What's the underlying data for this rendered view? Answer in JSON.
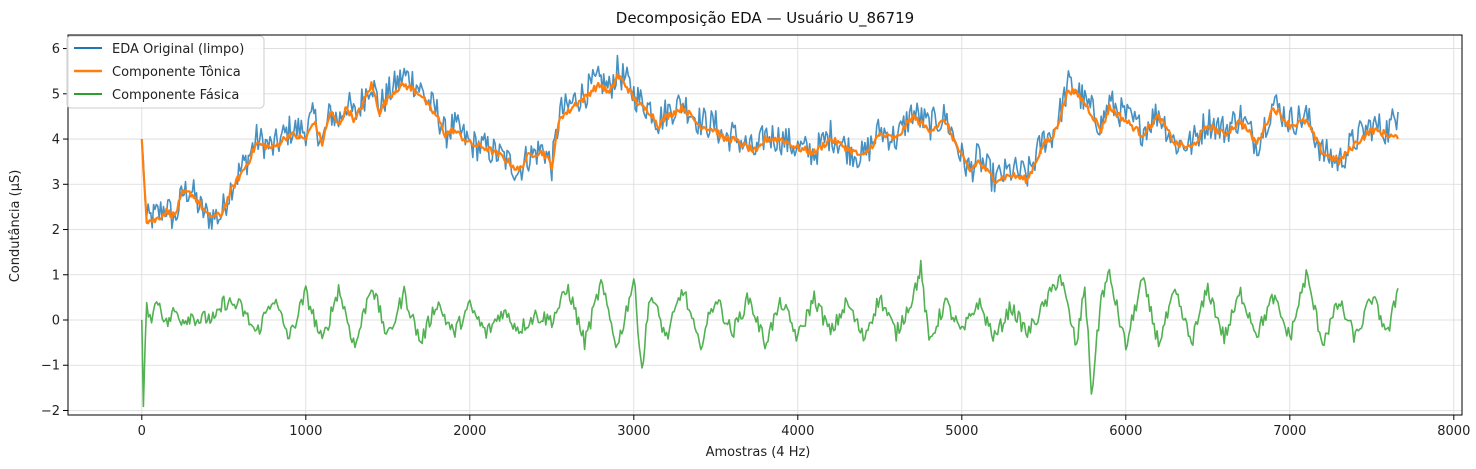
{
  "chart_data": {
    "type": "line",
    "title": "Decomposição EDA — Usuário U_86719",
    "xlabel": "Amostras (4 Hz)",
    "ylabel": "Condutância (μS)",
    "xlim": [
      -450,
      8050
    ],
    "ylim": [
      -2.1,
      6.3
    ],
    "xticks": [
      0,
      1000,
      2000,
      3000,
      4000,
      5000,
      6000,
      7000,
      8000
    ],
    "xtick_labels": [
      "0",
      "1000",
      "2000",
      "3000",
      "4000",
      "5000",
      "6000",
      "7000",
      "8000"
    ],
    "yticks": [
      -2,
      -1,
      0,
      1,
      2,
      3,
      4,
      5,
      6
    ],
    "ytick_labels": [
      "−2",
      "−1",
      "0",
      "1",
      "2",
      "3",
      "4",
      "5",
      "6"
    ],
    "grid": true,
    "legend_position": "top-left",
    "series": [
      {
        "name": "EDA Original (limpo)",
        "color": "#1f77b4",
        "x": [
          0,
          30,
          80,
          150,
          200,
          250,
          300,
          350,
          400,
          480,
          550,
          600,
          650,
          700,
          800,
          900,
          1000,
          1050,
          1100,
          1150,
          1200,
          1250,
          1300,
          1350,
          1400,
          1450,
          1500,
          1550,
          1600,
          1650,
          1700,
          1750,
          1800,
          1850,
          1900,
          2000,
          2100,
          2200,
          2300,
          2350,
          2400,
          2450,
          2500,
          2550,
          2600,
          2650,
          2700,
          2750,
          2800,
          2850,
          2900,
          2950,
          3000,
          3050,
          3100,
          3150,
          3200,
          3300,
          3400,
          3500,
          3550,
          3600,
          3700,
          3750,
          3800,
          3900,
          4000,
          4100,
          4200,
          4300,
          4400,
          4500,
          4600,
          4700,
          4800,
          4900,
          5000,
          5050,
          5100,
          5200,
          5300,
          5400,
          5500,
          5550,
          5600,
          5650,
          5700,
          5750,
          5800,
          5850,
          5900,
          6000,
          6100,
          6200,
          6300,
          6400,
          6500,
          6600,
          6700,
          6800,
          6900,
          7000,
          7100,
          7200,
          7250,
          7300,
          7400,
          7500,
          7600,
          7660
        ],
        "y": [
          4.0,
          2.2,
          2.3,
          2.5,
          2.2,
          2.8,
          2.9,
          2.5,
          2.3,
          2.3,
          3.0,
          3.3,
          3.6,
          4.0,
          3.8,
          4.2,
          4.2,
          4.5,
          3.9,
          4.6,
          4.4,
          4.8,
          4.5,
          4.9,
          5.3,
          4.7,
          5.0,
          5.2,
          5.4,
          5.3,
          5.1,
          4.8,
          4.6,
          4.1,
          4.3,
          3.9,
          3.8,
          3.6,
          3.3,
          3.6,
          3.7,
          3.8,
          3.4,
          4.6,
          4.7,
          4.9,
          5.0,
          5.2,
          5.3,
          5.1,
          5.5,
          5.3,
          5.0,
          4.8,
          4.7,
          4.4,
          4.6,
          4.8,
          4.4,
          4.3,
          4.0,
          4.1,
          3.8,
          3.7,
          4.1,
          4.0,
          3.8,
          3.7,
          4.1,
          3.8,
          3.6,
          4.2,
          4.0,
          4.6,
          4.3,
          4.5,
          3.6,
          3.3,
          3.6,
          3.1,
          3.3,
          3.2,
          4.0,
          4.1,
          4.6,
          5.2,
          5.1,
          4.8,
          4.6,
          4.3,
          4.8,
          4.5,
          4.2,
          4.6,
          3.9,
          3.9,
          4.4,
          4.2,
          4.5,
          3.9,
          4.8,
          4.4,
          4.5,
          3.7,
          3.6,
          3.5,
          4.0,
          4.3,
          4.2,
          4.6
        ]
      },
      {
        "name": "Componente Tônica",
        "color": "#ff7f0e",
        "x": [
          0,
          30,
          80,
          150,
          200,
          250,
          300,
          350,
          400,
          480,
          550,
          600,
          650,
          700,
          800,
          900,
          1000,
          1050,
          1100,
          1150,
          1200,
          1250,
          1300,
          1350,
          1400,
          1450,
          1500,
          1550,
          1600,
          1650,
          1700,
          1750,
          1800,
          1850,
          1900,
          2000,
          2100,
          2200,
          2300,
          2350,
          2400,
          2450,
          2500,
          2550,
          2600,
          2650,
          2700,
          2750,
          2800,
          2850,
          2900,
          2950,
          3000,
          3050,
          3100,
          3150,
          3200,
          3300,
          3400,
          3500,
          3550,
          3600,
          3700,
          3750,
          3800,
          3900,
          4000,
          4100,
          4200,
          4300,
          4400,
          4500,
          4600,
          4700,
          4800,
          4900,
          5000,
          5050,
          5100,
          5200,
          5300,
          5400,
          5500,
          5550,
          5600,
          5650,
          5700,
          5750,
          5800,
          5850,
          5900,
          6000,
          6100,
          6200,
          6300,
          6400,
          6500,
          6600,
          6700,
          6800,
          6900,
          7000,
          7100,
          7200,
          7250,
          7300,
          7400,
          7500,
          7600,
          7660
        ],
        "y": [
          4.0,
          2.2,
          2.2,
          2.4,
          2.3,
          2.8,
          2.8,
          2.6,
          2.3,
          2.3,
          2.9,
          3.2,
          3.5,
          3.9,
          3.8,
          4.1,
          4.0,
          4.4,
          3.9,
          4.6,
          4.3,
          4.7,
          4.4,
          4.8,
          5.2,
          4.6,
          4.9,
          5.1,
          5.2,
          5.1,
          5.0,
          4.7,
          4.5,
          4.1,
          4.2,
          3.9,
          3.8,
          3.6,
          3.3,
          3.6,
          3.7,
          3.7,
          3.4,
          4.5,
          4.6,
          4.8,
          4.9,
          5.1,
          5.2,
          5.0,
          5.4,
          5.2,
          4.9,
          4.7,
          4.6,
          4.3,
          4.5,
          4.7,
          4.3,
          4.2,
          4.0,
          4.0,
          3.8,
          3.7,
          4.0,
          4.0,
          3.8,
          3.7,
          4.0,
          3.8,
          3.6,
          4.1,
          4.0,
          4.5,
          4.2,
          4.4,
          3.6,
          3.3,
          3.5,
          3.1,
          3.2,
          3.1,
          3.9,
          4.0,
          4.5,
          5.1,
          5.0,
          4.8,
          4.5,
          4.2,
          4.7,
          4.4,
          4.1,
          4.5,
          3.9,
          3.8,
          4.3,
          4.1,
          4.4,
          3.9,
          4.7,
          4.3,
          4.4,
          3.7,
          3.6,
          3.5,
          3.9,
          4.2,
          4.1,
          4.0
        ]
      },
      {
        "name": "Componente Fásica",
        "color": "#2ca02c",
        "x": [
          0,
          10,
          30,
          60,
          100,
          150,
          200,
          250,
          300,
          350,
          400,
          450,
          500,
          600,
          700,
          800,
          900,
          1000,
          1100,
          1200,
          1300,
          1400,
          1500,
          1600,
          1700,
          1800,
          1900,
          2000,
          2100,
          2200,
          2300,
          2400,
          2500,
          2600,
          2700,
          2800,
          2900,
          3000,
          3050,
          3100,
          3200,
          3300,
          3400,
          3500,
          3600,
          3700,
          3800,
          3900,
          4000,
          4100,
          4200,
          4300,
          4400,
          4500,
          4600,
          4700,
          4750,
          4800,
          4900,
          5000,
          5100,
          5200,
          5300,
          5400,
          5500,
          5600,
          5700,
          5750,
          5790,
          5800,
          5850,
          5900,
          6000,
          6100,
          6200,
          6300,
          6400,
          6500,
          6600,
          6700,
          6800,
          6900,
          7000,
          7100,
          7200,
          7300,
          7400,
          7500,
          7600,
          7660
        ],
        "y": [
          0.0,
          -1.75,
          0.3,
          0.1,
          0.45,
          -0.1,
          0.2,
          0.0,
          0.1,
          0.0,
          0.05,
          0.0,
          0.4,
          0.3,
          -0.3,
          0.5,
          -0.4,
          0.6,
          -0.5,
          0.7,
          -0.6,
          0.8,
          -0.4,
          0.6,
          -0.5,
          0.4,
          -0.3,
          0.3,
          -0.3,
          0.2,
          -0.2,
          0.1,
          0.0,
          0.7,
          -0.5,
          0.8,
          -0.6,
          0.9,
          -1.1,
          0.6,
          -0.4,
          0.7,
          -0.6,
          0.5,
          -0.3,
          0.5,
          -0.5,
          0.4,
          -0.4,
          0.5,
          -0.3,
          0.4,
          -0.4,
          0.5,
          -0.3,
          0.5,
          1.15,
          -0.5,
          0.4,
          -0.3,
          0.4,
          -0.4,
          0.3,
          -0.3,
          0.3,
          1.0,
          -0.6,
          0.8,
          -1.6,
          -1.3,
          0.5,
          1.0,
          -0.6,
          0.9,
          -0.5,
          0.6,
          -0.5,
          0.7,
          -0.4,
          0.6,
          -0.3,
          0.5,
          -0.4,
          1.0,
          -0.5,
          0.4,
          -0.4,
          0.5,
          -0.3,
          0.7
        ]
      }
    ]
  }
}
